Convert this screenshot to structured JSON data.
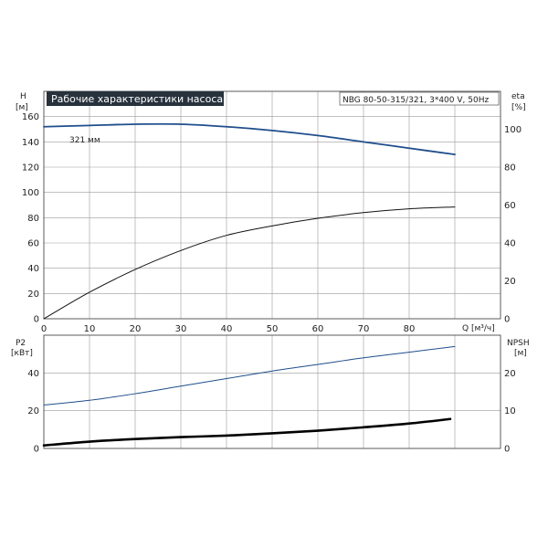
{
  "chart_data": [
    {
      "type": "line",
      "title": "Рабочие характеристики насоса",
      "subtitle": "NBG 80-50-315/321, 3*400 V, 50Hz",
      "xlabel": "Q [м³/ч]",
      "ylabel_left": "H",
      "ylabel_left_unit": "[м]",
      "ylabel_right": "eta",
      "ylabel_right_unit": "[%]",
      "xlim": [
        0,
        100
      ],
      "ylim_left": [
        0,
        180
      ],
      "ylim_right": [
        0,
        120
      ],
      "x_ticks": [
        "0",
        "10",
        "20",
        "30",
        "40",
        "50",
        "60",
        "70",
        "80"
      ],
      "y_ticks_left": [
        "0",
        "20",
        "40",
        "60",
        "80",
        "100",
        "120",
        "140",
        "160"
      ],
      "y_ticks_right": [
        "0",
        "20",
        "40",
        "60",
        "80",
        "100"
      ],
      "grid": true,
      "annotation": "321 мм",
      "series": [
        {
          "axis": "left",
          "color": "#1f4e8c",
          "x": [
            0,
            10,
            20,
            30,
            40,
            50,
            60,
            70,
            80,
            90
          ],
          "y": [
            152,
            153,
            154,
            154,
            152,
            149,
            145,
            140,
            135,
            130
          ]
        },
        {
          "axis": "right",
          "color": "#111111",
          "x": [
            0,
            10,
            20,
            30,
            40,
            50,
            60,
            70,
            80,
            90
          ],
          "y": [
            0,
            14,
            26,
            36,
            44,
            49,
            53,
            56,
            58,
            59
          ]
        }
      ]
    },
    {
      "type": "line",
      "ylabel_left": "P2",
      "ylabel_left_unit": "[кВт]",
      "ylabel_right": "NPSH",
      "ylabel_right_unit": "[м]",
      "xlim": [
        0,
        100
      ],
      "ylim_left": [
        0,
        60
      ],
      "ylim_right": [
        0,
        30
      ],
      "y_ticks_left": [
        "0",
        "20",
        "40"
      ],
      "y_ticks_right": [
        "0",
        "10",
        "20"
      ],
      "grid": true,
      "series": [
        {
          "axis": "left",
          "color": "#1f4e8c",
          "x": [
            0,
            10,
            20,
            30,
            40,
            50,
            60,
            70,
            80,
            90
          ],
          "y": [
            23,
            25.5,
            29,
            33,
            37,
            41,
            44.5,
            48,
            51,
            54
          ]
        },
        {
          "axis": "right",
          "color": "#000000",
          "x": [
            0,
            10,
            20,
            30,
            40,
            50,
            60,
            70,
            80,
            89
          ],
          "y": [
            0.8,
            1.8,
            2.5,
            3.0,
            3.4,
            4.0,
            4.7,
            5.6,
            6.6,
            7.8
          ]
        }
      ]
    }
  ]
}
